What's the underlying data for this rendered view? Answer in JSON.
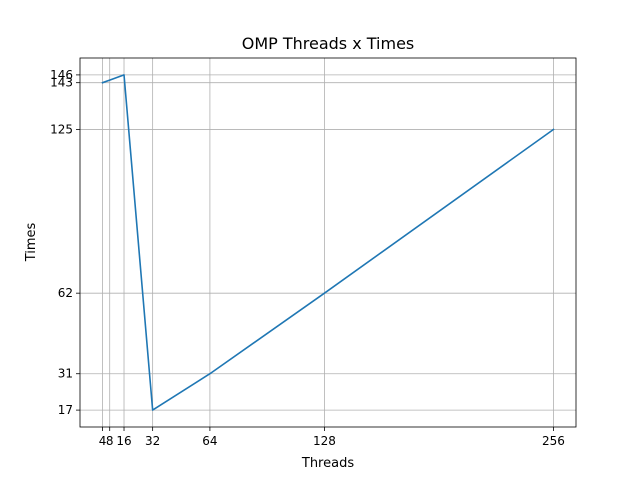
{
  "chart_data": {
    "type": "line",
    "title": "OMP Threads x Times",
    "xlabel": "Threads",
    "ylabel": "Times",
    "grid": true,
    "xticks": [
      4,
      8,
      16,
      32,
      64,
      128,
      256
    ],
    "yticks": [
      17,
      31,
      62,
      125,
      143,
      146
    ],
    "xlim": [
      -8.6,
      268.6
    ],
    "ylim": [
      10.5,
      152.5
    ],
    "series": [
      {
        "x": [
          4,
          8,
          16,
          32,
          64,
          128,
          256
        ],
        "y": [
          143,
          144,
          146,
          17,
          31,
          62,
          125
        ],
        "color": "#1f77b4"
      }
    ]
  }
}
